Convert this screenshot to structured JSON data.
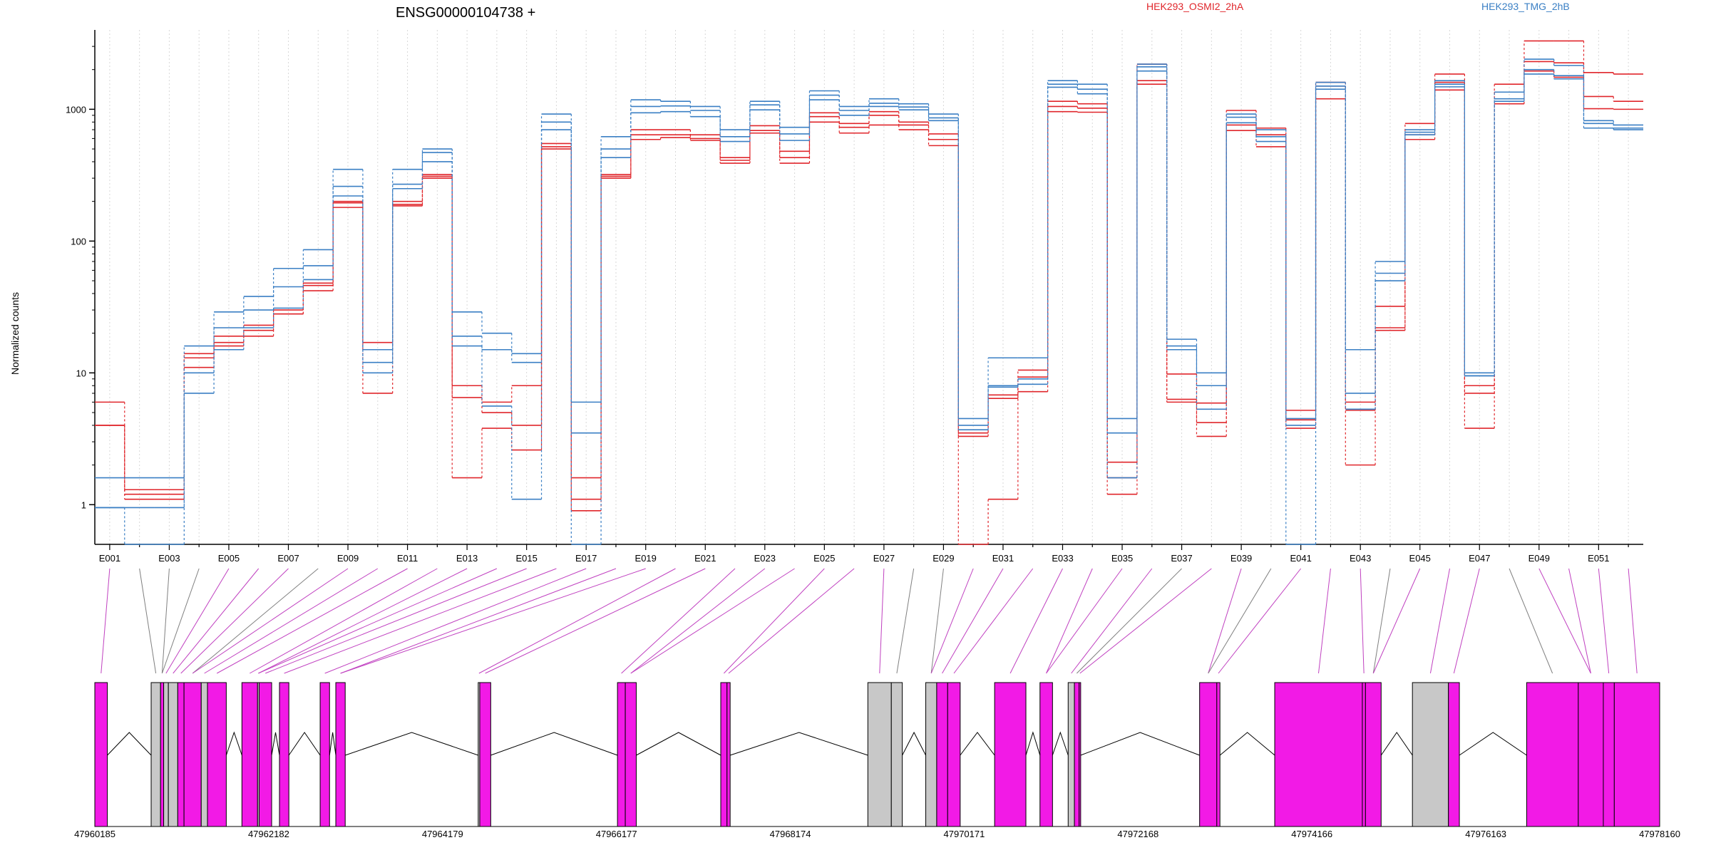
{
  "chart_data": {
    "type": "line",
    "title": "ENSG00000104738 +",
    "ylabel": "Normalized counts",
    "yscale": "log",
    "ylim": [
      0.5,
      4000
    ],
    "yticks": [
      1,
      10,
      100,
      1000
    ],
    "ytick_labels": [
      "1",
      "10",
      "100",
      "1000"
    ],
    "grid": "vertical dotted lines at each exon bin",
    "legend_placement": "top-right",
    "categories": [
      "E001",
      "E002",
      "E003",
      "E004",
      "E005",
      "E006",
      "E007",
      "E008",
      "E009",
      "E010",
      "E011",
      "E012",
      "E013",
      "E014",
      "E015",
      "E016",
      "E017",
      "E018",
      "E019",
      "E020",
      "E021",
      "E022",
      "E023",
      "E024",
      "E025",
      "E026",
      "E027",
      "E028",
      "E029",
      "E030",
      "E031",
      "E032",
      "E033",
      "E034",
      "E035",
      "E036",
      "E037",
      "E038",
      "E039",
      "E040",
      "E041",
      "E042",
      "E043",
      "E044",
      "E045",
      "E046",
      "E047",
      "E048",
      "E049",
      "E050",
      "E051",
      "E052"
    ],
    "xtick_labels": [
      "E001",
      "E003",
      "E005",
      "E007",
      "E009",
      "E011",
      "E013",
      "E015",
      "E017",
      "E019",
      "E021",
      "E023",
      "E025",
      "E027",
      "E029",
      "E031",
      "E033",
      "E035",
      "E037",
      "E039",
      "E041",
      "E043",
      "E045",
      "E047",
      "E049",
      "E051"
    ],
    "series": [
      {
        "name": "HEK293_OSMI2_2hA",
        "color": "#e0262b",
        "values": [
          6,
          1.3,
          1.3,
          14,
          19,
          23,
          30,
          48,
          195,
          17,
          200,
          320,
          8,
          6,
          8,
          550,
          1.6,
          320,
          700,
          700,
          640,
          430,
          750,
          480,
          940,
          780,
          960,
          800,
          650,
          3.5,
          6.8,
          10.5,
          1150,
          1100,
          1.6,
          2200,
          9.8,
          5.9,
          980,
          720,
          5.2,
          1600,
          6,
          32,
          780,
          1850,
          8,
          1550,
          3300,
          3300,
          1900,
          1850
        ]
      },
      {
        "name": "HEK293_OSMI2_2hA",
        "color": "#e0262b",
        "values": [
          4,
          1.2,
          1.2,
          13,
          17,
          21,
          28,
          42,
          180,
          7,
          185,
          300,
          6.5,
          5,
          4,
          500,
          0.9,
          310,
          640,
          640,
          600,
          410,
          690,
          430,
          880,
          730,
          900,
          760,
          590,
          3.3,
          6.4,
          9.3,
          1050,
          1020,
          1.2,
          1650,
          6.3,
          4.2,
          760,
          640,
          4.4,
          1200,
          5.2,
          22,
          640,
          1600,
          7,
          1350,
          2300,
          2250,
          1250,
          1150
        ]
      },
      {
        "name": "HEK293_OSMI2_2hA",
        "color": "#e0262b",
        "values": [
          4,
          1.1,
          1.1,
          11,
          16,
          19,
          28,
          46,
          200,
          15,
          190,
          310,
          1.6,
          3.8,
          2.6,
          520,
          1.1,
          300,
          590,
          610,
          580,
          390,
          660,
          390,
          800,
          660,
          760,
          700,
          530,
          0.5,
          1.1,
          7.2,
          960,
          950,
          2.1,
          1550,
          6,
          3.3,
          690,
          520,
          3.8,
          1500,
          2,
          21,
          590,
          1400,
          3.8,
          1100,
          1950,
          1750,
          1010,
          1000
        ]
      },
      {
        "name": "HEK293_TMG_2hB",
        "color": "#3a7fc4",
        "values": [
          1.6,
          1.6,
          1.6,
          16,
          29,
          38,
          62,
          86,
          350,
          15,
          350,
          500,
          29,
          20,
          14,
          920,
          6,
          620,
          1180,
          1150,
          1050,
          700,
          1150,
          730,
          1380,
          1050,
          1200,
          1100,
          920,
          4.5,
          13,
          13,
          1650,
          1550,
          4.5,
          2200,
          18,
          10,
          920,
          700,
          4.5,
          1600,
          15,
          70,
          700,
          1650,
          10,
          1350,
          2400,
          2150,
          820,
          760
        ]
      },
      {
        "name": "HEK293_TMG_2hB",
        "color": "#3a7fc4",
        "values": [
          0.95,
          0.95,
          0.95,
          10,
          22,
          30,
          45,
          65,
          260,
          12,
          270,
          400,
          19,
          15,
          12,
          800,
          3.5,
          500,
          1050,
          1060,
          980,
          620,
          1080,
          650,
          1280,
          980,
          1110,
          1040,
          860,
          4,
          8,
          9,
          1550,
          1420,
          3.5,
          2100,
          16,
          8,
          870,
          620,
          4,
          1500,
          7,
          50,
          670,
          1550,
          9.5,
          1200,
          2000,
          1800,
          780,
          720
        ]
      },
      {
        "name": "HEK293_TMG_2hB",
        "color": "#3a7fc4",
        "values": [
          0.95,
          0.5,
          0.5,
          7,
          15,
          22,
          31,
          51,
          220,
          10,
          250,
          470,
          16,
          5.6,
          1.1,
          700,
          0.5,
          430,
          940,
          960,
          880,
          570,
          990,
          580,
          1180,
          900,
          1050,
          990,
          820,
          3.7,
          7.8,
          8.2,
          1470,
          1310,
          1.6,
          1950,
          15,
          5.3,
          790,
          570,
          0.5,
          1420,
          5.3,
          57,
          640,
          1480,
          9.5,
          1150,
          1850,
          1700,
          720,
          700
        ]
      }
    ],
    "genome_axis": {
      "tick_labels": [
        "47960185",
        "47962182",
        "47964179",
        "47966177",
        "47968174",
        "47970171",
        "47972168",
        "47974166",
        "47976163",
        "47978160"
      ],
      "range": [
        47960185,
        47978160
      ]
    },
    "connector_colors": {
      "tested": "#c040c0",
      "untested": "#808080"
    },
    "exon_colors": {
      "tested": "#f21ae6",
      "untested": "#c8c8c8"
    }
  }
}
